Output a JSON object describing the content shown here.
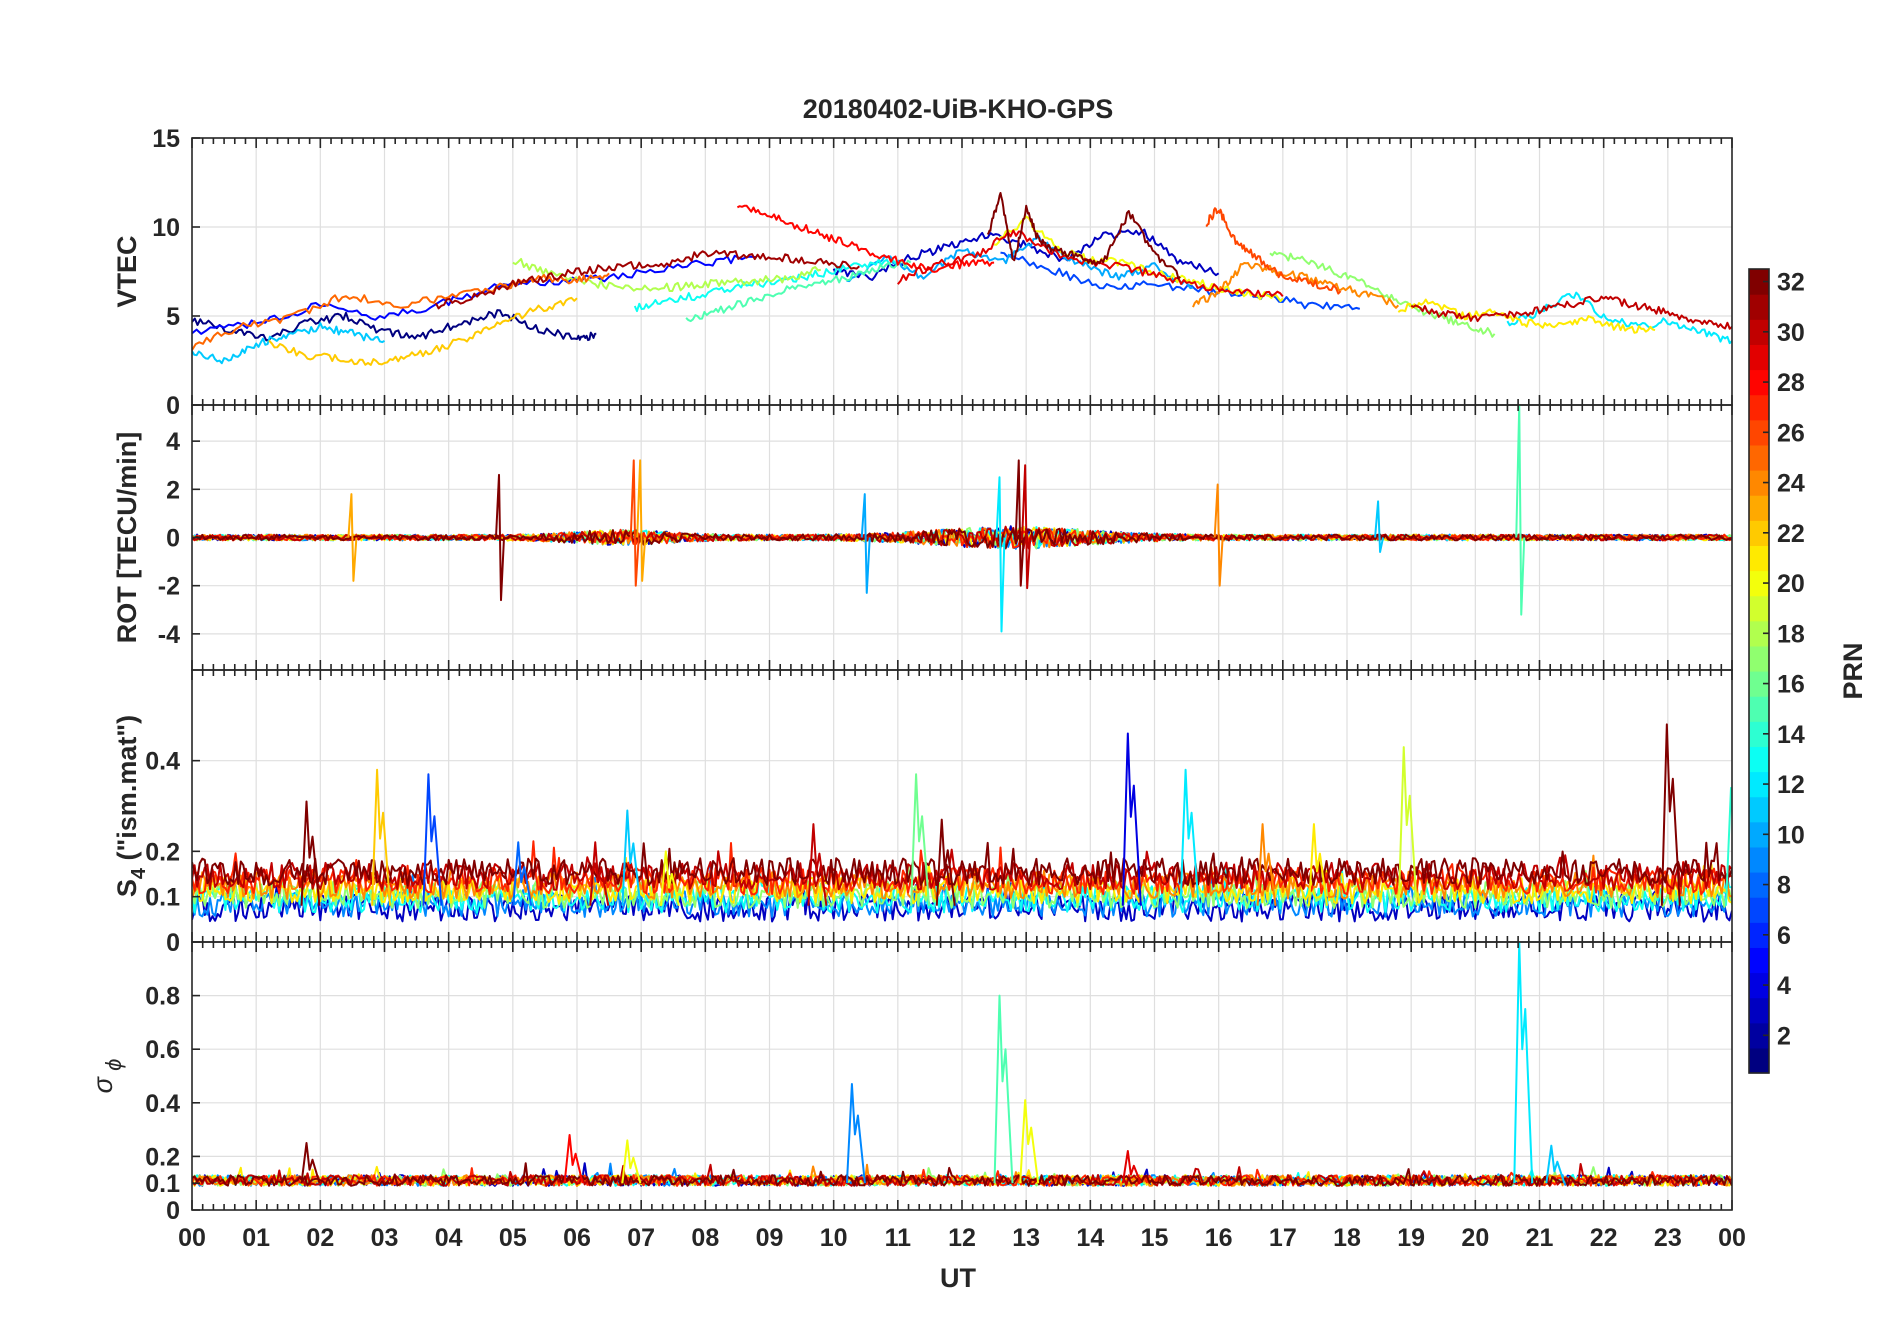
{
  "figure_title": "20180402-UiB-KHO-GPS",
  "chart_data": {
    "type": "line",
    "title": "20180402-UiB-KHO-GPS",
    "xlabel": "UT",
    "x_range_hours": [
      0,
      24
    ],
    "x_tick_labels": [
      "00",
      "01",
      "02",
      "03",
      "04",
      "05",
      "06",
      "07",
      "08",
      "09",
      "10",
      "11",
      "12",
      "13",
      "14",
      "15",
      "16",
      "17",
      "18",
      "19",
      "20",
      "21",
      "22",
      "23",
      "00"
    ],
    "colormap": "jet",
    "colorbar": {
      "label": "PRN",
      "range": [
        1,
        32
      ],
      "ticks": [
        "2",
        "4",
        "6",
        "8",
        "10",
        "12",
        "14",
        "16",
        "18",
        "20",
        "22",
        "24",
        "26",
        "28",
        "30",
        "32"
      ],
      "placement": "right"
    },
    "panels": [
      {
        "id": "vtec",
        "ylabel": "VTEC",
        "ylim": [
          0,
          15
        ],
        "yticks": [
          "0",
          "5",
          "10",
          "15"
        ],
        "curves": [
          {
            "prn": 1,
            "x": [
              0.0,
              0.6,
              1.2,
              1.8,
              2.4,
              3.0,
              3.6,
              4.2,
              4.8,
              5.4,
              6.0,
              6.3
            ],
            "y": [
              4.8,
              4.2,
              3.8,
              4.6,
              5.0,
              4.1,
              3.9,
              4.6,
              5.2,
              4.3,
              3.7,
              4.0
            ]
          },
          {
            "prn": 3,
            "x": [
              10.0,
              10.6,
              11.2,
              11.8,
              12.4,
              13.0,
              13.6,
              14.2,
              14.8,
              15.4,
              16.0
            ],
            "y": [
              7.5,
              7.2,
              8.3,
              8.9,
              9.6,
              9.0,
              8.1,
              9.5,
              9.8,
              8.0,
              7.4
            ]
          },
          {
            "prn": 5,
            "x": [
              0.0,
              1.0,
              2.0,
              3.0,
              4.0,
              5.0,
              6.0,
              7.0,
              8.0,
              8.8
            ],
            "y": [
              4.0,
              4.6,
              5.6,
              4.9,
              5.8,
              6.9,
              7.0,
              7.4,
              8.0,
              8.3
            ]
          },
          {
            "prn": 7,
            "x": [
              12.6,
              13.4,
              14.2,
              15.0,
              15.8,
              16.6,
              17.4,
              18.2
            ],
            "y": [
              8.5,
              7.6,
              6.6,
              6.8,
              6.4,
              6.2,
              5.6,
              5.4
            ]
          },
          {
            "prn": 10,
            "x": [
              10.2,
              10.8,
              11.4,
              12.0,
              12.6,
              13.2,
              13.8,
              14.4,
              15.0,
              15.6
            ],
            "y": [
              7.0,
              8.4,
              7.1,
              8.8,
              8.0,
              9.3,
              8.0,
              7.2,
              7.8,
              6.6
            ]
          },
          {
            "prn": 11,
            "x": [
              0.0,
              0.5,
              1.0,
              1.5,
              2.0,
              2.5,
              3.0
            ],
            "y": [
              3.0,
              2.5,
              3.4,
              3.9,
              4.4,
              4.0,
              3.6
            ]
          },
          {
            "prn": 12,
            "x": [
              20.5,
              21.0,
              21.5,
              22.0,
              22.5,
              23.0,
              23.5,
              24.0
            ],
            "y": [
              4.6,
              5.2,
              6.3,
              5.0,
              4.4,
              4.7,
              4.1,
              3.6
            ]
          },
          {
            "prn": 13,
            "x": [
              6.9,
              7.4,
              8.0,
              8.6,
              9.2,
              9.8,
              10.4,
              11.0
            ],
            "y": [
              5.4,
              5.9,
              6.2,
              6.7,
              7.0,
              7.4,
              7.8,
              8.1
            ]
          },
          {
            "prn": 15,
            "x": [
              7.7,
              8.2,
              8.8,
              9.4,
              10.0,
              10.6,
              11.2
            ],
            "y": [
              4.7,
              5.3,
              6.0,
              6.6,
              7.0,
              7.6,
              8.0
            ]
          },
          {
            "prn": 17,
            "x": [
              16.8,
              17.3,
              17.8,
              18.3,
              18.8,
              19.3,
              19.8,
              20.3
            ],
            "y": [
              8.5,
              8.2,
              7.5,
              6.8,
              5.9,
              5.1,
              4.6,
              4.0
            ]
          },
          {
            "prn": 18,
            "x": [
              5.0,
              5.6,
              6.2,
              6.8,
              7.4,
              8.0,
              8.6,
              9.2,
              9.8
            ],
            "y": [
              8.2,
              7.3,
              6.9,
              6.5,
              6.6,
              6.8,
              6.9,
              7.1,
              7.6
            ]
          },
          {
            "prn": 20,
            "x": [
              12.5,
              13.0,
              13.5,
              14.0,
              14.5,
              15.0,
              15.5,
              16.0,
              16.5,
              17.0
            ],
            "y": [
              9.0,
              10.5,
              8.7,
              8.2,
              8.0,
              7.4,
              7.0,
              6.6,
              6.2,
              6.0
            ]
          },
          {
            "prn": 21,
            "x": [
              18.8,
              19.3,
              19.8,
              20.3,
              20.8,
              21.3,
              21.8,
              22.3,
              22.8
            ],
            "y": [
              5.4,
              5.8,
              5.0,
              5.2,
              4.6,
              4.5,
              4.8,
              4.3,
              4.2
            ]
          },
          {
            "prn": 22,
            "x": [
              1.2,
              1.8,
              2.4,
              3.0,
              3.6,
              4.2,
              4.8,
              5.4,
              6.0
            ],
            "y": [
              3.4,
              2.8,
              2.5,
              2.4,
              2.9,
              3.6,
              4.6,
              5.4,
              6.0
            ]
          },
          {
            "prn": 24,
            "x": [
              15.6,
              16.0,
              16.4,
              16.8,
              17.3,
              17.8,
              18.3,
              18.8
            ],
            "y": [
              5.6,
              6.3,
              8.0,
              7.6,
              7.2,
              6.7,
              6.2,
              5.6
            ]
          },
          {
            "prn": 25,
            "x": [
              0.0,
              0.8,
              1.6,
              2.4,
              3.2,
              4.0,
              4.8,
              5.4,
              6.0,
              6.5
            ],
            "y": [
              3.3,
              4.4,
              5.0,
              6.2,
              5.6,
              6.1,
              6.6,
              7.1,
              7.0,
              7.4
            ]
          },
          {
            "prn": 26,
            "x": [
              15.8,
              16.0,
              16.2,
              16.5,
              16.9,
              17.4,
              17.9
            ],
            "y": [
              10.2,
              11.1,
              9.4,
              8.6,
              7.4,
              6.9,
              6.4
            ]
          },
          {
            "prn": 28,
            "x": [
              8.5,
              9.0,
              9.5,
              10.0,
              10.5,
              11.0,
              11.5,
              12.0,
              12.5
            ],
            "y": [
              11.2,
              10.6,
              10.0,
              9.3,
              8.7,
              8.1,
              7.6,
              7.9,
              8.0
            ]
          },
          {
            "prn": 29,
            "x": [
              11.0,
              11.6,
              12.2,
              12.8,
              13.4,
              14.0,
              14.6,
              15.2,
              15.8,
              16.4,
              17.0
            ],
            "y": [
              7.0,
              7.9,
              8.3,
              9.8,
              8.6,
              8.0,
              7.7,
              7.1,
              6.6,
              6.4,
              6.1
            ]
          },
          {
            "prn": 30,
            "x": [
              19.0,
              19.5,
              20.0,
              20.5,
              21.0,
              21.5,
              22.0,
              22.5,
              23.0,
              23.5,
              24.0
            ],
            "y": [
              5.6,
              5.1,
              4.9,
              5.1,
              5.3,
              5.7,
              6.0,
              5.6,
              5.2,
              4.7,
              4.4
            ]
          },
          {
            "prn": 31,
            "x": [
              3.8,
              4.4,
              5.0,
              5.6,
              6.2,
              6.8,
              7.4,
              8.0,
              8.6,
              9.2,
              9.8,
              10.4
            ],
            "y": [
              5.6,
              6.1,
              6.8,
              7.2,
              7.6,
              7.8,
              8.0,
              8.5,
              8.4,
              8.3,
              8.0,
              7.8
            ]
          },
          {
            "prn": 32,
            "x": [
              12.4,
              12.6,
              12.8,
              13.0,
              13.2,
              13.4,
              13.8,
              14.2,
              14.6,
              15.0,
              15.4
            ],
            "y": [
              9.5,
              11.8,
              8.0,
              11.0,
              9.2,
              8.8,
              8.3,
              8.0,
              10.8,
              8.5,
              7.2
            ]
          }
        ]
      },
      {
        "id": "rot",
        "ylabel": "ROT [TECU/min]",
        "ylim": [
          -5.5,
          5.5
        ],
        "yticks": [
          "-4",
          "-2",
          "0",
          "2",
          "4"
        ],
        "spikes": [
          {
            "prn": 32,
            "x": 4.8,
            "peak": 2.6,
            "trough": -2.6
          },
          {
            "prn": 23,
            "x": 2.5,
            "peak": 1.8,
            "trough": -1.8
          },
          {
            "prn": 26,
            "x": 6.9,
            "peak": 3.2,
            "trough": -2.0
          },
          {
            "prn": 23,
            "x": 7.0,
            "peak": 3.2,
            "trough": -1.8
          },
          {
            "prn": 10,
            "x": 10.5,
            "peak": 1.8,
            "trough": -2.3
          },
          {
            "prn": 12,
            "x": 12.6,
            "peak": 2.5,
            "trough": -3.9
          },
          {
            "prn": 32,
            "x": 12.9,
            "peak": 3.2,
            "trough": -2.0
          },
          {
            "prn": 30,
            "x": 13.0,
            "peak": 3.0,
            "trough": -2.1
          },
          {
            "prn": 24,
            "x": 16.0,
            "peak": 2.2,
            "trough": -2.0
          },
          {
            "prn": 15,
            "x": 20.7,
            "peak": 5.5,
            "trough": -3.2
          },
          {
            "prn": 11,
            "x": 18.5,
            "peak": 1.5,
            "trough": -0.6
          }
        ]
      },
      {
        "id": "s4",
        "ylabel": "S4 (\"ism.mat\")",
        "ylim": [
          0,
          0.6
        ],
        "yticks": [
          "0",
          "0.1",
          "0.2",
          "0.4"
        ],
        "spikes": [
          {
            "prn": 32,
            "x": 1.8,
            "peak": 0.31
          },
          {
            "prn": 22,
            "x": 2.9,
            "peak": 0.38
          },
          {
            "prn": 7,
            "x": 3.7,
            "peak": 0.37
          },
          {
            "prn": 8,
            "x": 5.1,
            "peak": 0.22
          },
          {
            "prn": 30,
            "x": 6.3,
            "peak": 0.22
          },
          {
            "prn": 11,
            "x": 6.8,
            "peak": 0.29
          },
          {
            "prn": 20,
            "x": 7.4,
            "peak": 0.2
          },
          {
            "prn": 30,
            "x": 9.7,
            "peak": 0.26
          },
          {
            "prn": 16,
            "x": 11.3,
            "peak": 0.37
          },
          {
            "prn": 32,
            "x": 11.7,
            "peak": 0.27
          },
          {
            "prn": 4,
            "x": 14.6,
            "peak": 0.46
          },
          {
            "prn": 12,
            "x": 15.5,
            "peak": 0.38
          },
          {
            "prn": 24,
            "x": 16.7,
            "peak": 0.26
          },
          {
            "prn": 21,
            "x": 17.5,
            "peak": 0.26
          },
          {
            "prn": 19,
            "x": 18.9,
            "peak": 0.43
          },
          {
            "prn": 32,
            "x": 23.0,
            "peak": 0.48
          },
          {
            "prn": 14,
            "x": 24.0,
            "peak": 0.34
          }
        ]
      },
      {
        "id": "sigma_phi",
        "ylabel": "σ ϕ",
        "ylim": [
          0,
          1.0
        ],
        "yticks": [
          "0",
          "0.1",
          "0.2",
          "0.4",
          "0.6",
          "0.8"
        ],
        "spikes": [
          {
            "prn": 32,
            "x": 1.8,
            "peak": 0.25
          },
          {
            "prn": 28,
            "x": 5.9,
            "peak": 0.28
          },
          {
            "prn": 20,
            "x": 6.8,
            "peak": 0.26
          },
          {
            "prn": 9,
            "x": 10.3,
            "peak": 0.47
          },
          {
            "prn": 15,
            "x": 12.6,
            "peak": 0.8
          },
          {
            "prn": 20,
            "x": 13.0,
            "peak": 0.41
          },
          {
            "prn": 29,
            "x": 14.6,
            "peak": 0.22
          },
          {
            "prn": 12,
            "x": 20.7,
            "peak": 1.0
          },
          {
            "prn": 11,
            "x": 21.2,
            "peak": 0.24
          }
        ]
      }
    ]
  }
}
